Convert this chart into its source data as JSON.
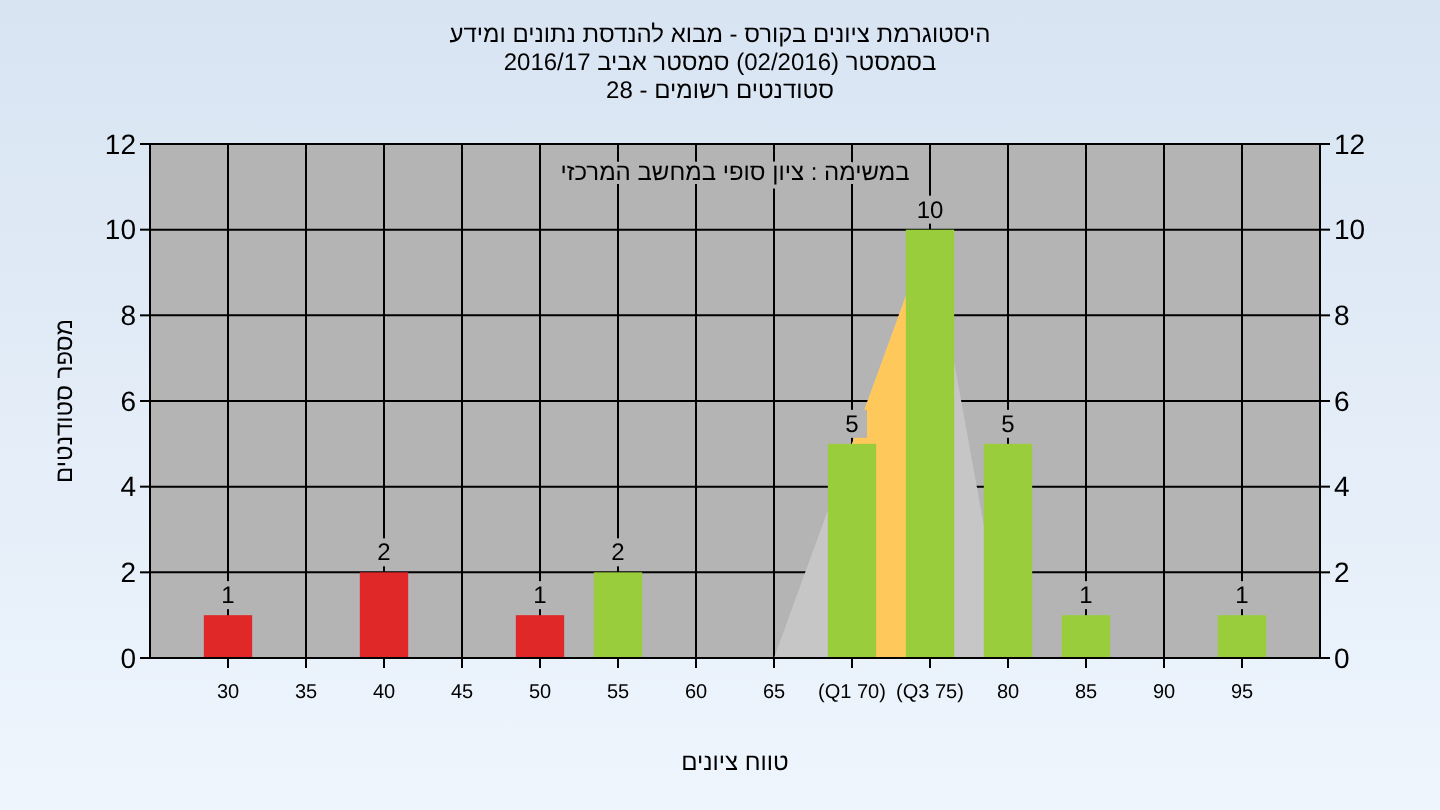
{
  "chart_data": {
    "type": "bar",
    "title": "היסטוגרמת ציונים בקורס - מבוא להנדסת נתונים ומידע",
    "subtitle": "בסמסטר  (02/2016)  סמסטר אביב 2016/17\nסטודנטים רשומים - 28",
    "xlabel": "טווח ציונים",
    "ylabel": "מספר סטודנטים",
    "annotations": [
      "במשימה : ציון סופי במחשב המרכזי"
    ],
    "xlim": [
      25,
      100
    ],
    "xticks": [
      30,
      35,
      40,
      45,
      50,
      55,
      60,
      65,
      {
        "value": 70,
        "label": "(Q1 70)"
      },
      {
        "value": 75,
        "label": "(Q3 75)"
      },
      80,
      85,
      90,
      95
    ],
    "ylim": [
      0,
      12
    ],
    "yticks": [
      0,
      2,
      4,
      6,
      8,
      10,
      12
    ],
    "y2lim": [
      0,
      12
    ],
    "y2ticks": [
      0,
      2,
      4,
      6,
      8,
      10,
      12
    ],
    "grid": true,
    "series": [
      {
        "type": "area",
        "x": [
          65,
          70,
          75,
          80
        ],
        "values": [
          0,
          5,
          10,
          0
        ],
        "color": "#c6c6c6"
      },
      {
        "type": "area",
        "x": [
          70,
          75
        ],
        "values": [
          5,
          10
        ],
        "color": "#ffc85a"
      },
      {
        "x": [
          30,
          40,
          50,
          55,
          70,
          75,
          80,
          85,
          95
        ],
        "values": [
          1,
          2,
          1,
          2,
          5,
          10,
          5,
          1,
          1
        ],
        "value_labels": [
          "1",
          "2",
          "1",
          "2",
          "5",
          "10",
          "5",
          "1",
          "1"
        ],
        "colors": [
          "#e02828",
          "#e02828",
          "#e02828",
          "#9acd3c",
          "#9acd3c",
          "#9acd3c",
          "#9acd3c",
          "#9acd3c",
          "#9acd3c"
        ]
      }
    ]
  }
}
